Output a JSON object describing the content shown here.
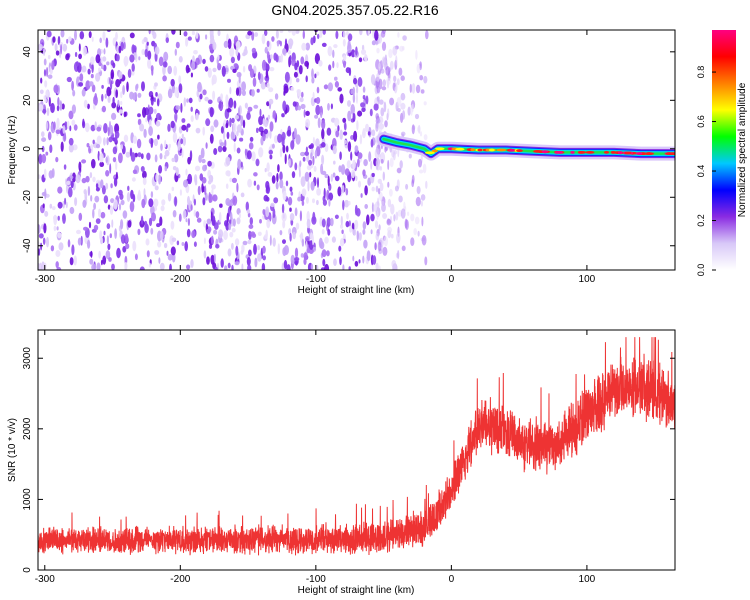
{
  "chart_data": [
    {
      "type": "heatmap",
      "title": "GN04.2025.357.05.22.R16",
      "xlabel": "Height of straight line (km)",
      "ylabel": "Frequency (Hz)",
      "xlim": [
        -305,
        165
      ],
      "ylim": [
        -50,
        49
      ],
      "x_ticks": [
        -300,
        -200,
        -100,
        0,
        100
      ],
      "y_ticks": [
        -40,
        -20,
        0,
        20,
        40
      ],
      "noise_region_x": [
        -305,
        -18
      ],
      "dense_noise_x": [
        -305,
        -55
      ],
      "signal_track": {
        "x": [
          -50,
          -40,
          -30,
          -20,
          -15,
          -10,
          0,
          20,
          40,
          60,
          80,
          100,
          120,
          140,
          165
        ],
        "frequency": [
          4,
          2.5,
          1.5,
          0,
          -2,
          0,
          0,
          -0.5,
          -0.5,
          -1,
          -1.5,
          -1.5,
          -1.5,
          -2,
          -2
        ]
      },
      "colorbar": {
        "label": "Normalized spectral amplitude",
        "range": [
          0,
          0.97
        ],
        "ticks": [
          0.0,
          0.2,
          0.4,
          0.6,
          0.8
        ],
        "tick_labels": [
          "0.0",
          "0.2",
          "0.4",
          "0.6",
          "0.8"
        ],
        "colors": [
          "#ffffff",
          "#d8c8f8",
          "#8a2be2",
          "#0000ff",
          "#00c8ff",
          "#00ff00",
          "#ffff00",
          "#ff7f00",
          "#ff0000",
          "#ff0080"
        ]
      }
    },
    {
      "type": "line",
      "xlabel": "Height of straight line (km)",
      "ylabel": "SNR (10 * v/v)",
      "xlim": [
        -305,
        165
      ],
      "ylim": [
        0,
        3400
      ],
      "x_ticks": [
        -300,
        -200,
        -100,
        0,
        100
      ],
      "y_ticks": [
        0,
        1000,
        2000,
        3000
      ],
      "series": [
        {
          "name": "SNR",
          "color": "#ee3333",
          "x": [
            -305,
            -250,
            -200,
            -150,
            -100,
            -50,
            -20,
            -10,
            0,
            10,
            20,
            25,
            40,
            60,
            80,
            100,
            120,
            140,
            165
          ],
          "mean": [
            420,
            420,
            430,
            430,
            440,
            460,
            600,
            800,
            1100,
            1600,
            2050,
            2100,
            1950,
            1750,
            1800,
            2200,
            2500,
            2600,
            2400
          ],
          "spread": [
            180,
            180,
            190,
            190,
            200,
            220,
            250,
            280,
            320,
            350,
            380,
            380,
            380,
            380,
            380,
            400,
            420,
            420,
            400
          ],
          "peak_value": 3300
        }
      ]
    }
  ]
}
